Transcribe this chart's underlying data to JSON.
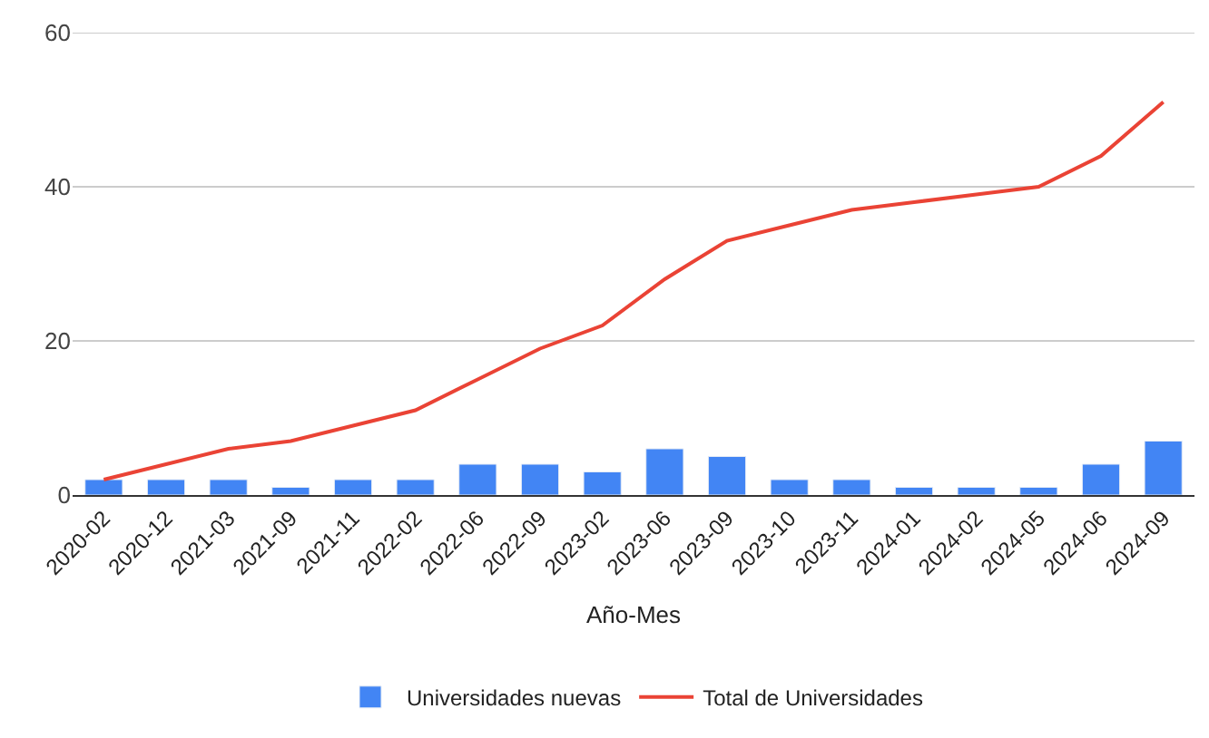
{
  "chart_data": {
    "type": "bar",
    "xlabel": "Año-Mes",
    "categories": [
      "2020-02",
      "2020-12",
      "2021-03",
      "2021-09",
      "2021-11",
      "2022-02",
      "2022-06",
      "2022-09",
      "2023-02",
      "2023-06",
      "2023-09",
      "2023-10",
      "2023-11",
      "2024-01",
      "2024-02",
      "2024-05",
      "2024-06",
      "2024-09"
    ],
    "series": [
      {
        "name": "Universidades nuevas",
        "color": "#4285f4",
        "values": [
          2,
          2,
          2,
          1,
          2,
          2,
          4,
          4,
          3,
          6,
          5,
          2,
          2,
          1,
          1,
          1,
          4,
          7
        ]
      },
      {
        "name": "Total de Universidades",
        "type": "line",
        "color": "#ea4335",
        "values": [
          2,
          4,
          6,
          7,
          9,
          11,
          15,
          19,
          22,
          28,
          33,
          35,
          37,
          38,
          39,
          40,
          44,
          51
        ]
      }
    ],
    "ylim": [
      0,
      60
    ],
    "yticks": [
      0,
      20,
      40,
      60
    ],
    "grid": "y",
    "legend": "bottom",
    "marker": "none",
    "line_style": "solid"
  }
}
